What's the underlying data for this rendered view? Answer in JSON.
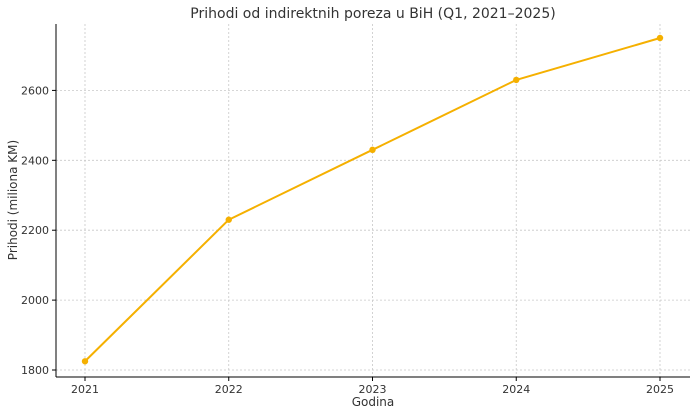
{
  "chart_data": {
    "type": "line",
    "title": "Prihodi od indirektnih poreza u BiH (Q1, 2021–2025)",
    "xlabel": "Godina",
    "ylabel": "Prihodi (miliona KM)",
    "categories": [
      "2021",
      "2022",
      "2023",
      "2024",
      "2025"
    ],
    "series": [
      {
        "values": [
          1825,
          2230,
          2430,
          2630,
          2750
        ]
      }
    ],
    "ylim": [
      1780,
      2790
    ],
    "yticks": [
      1800,
      2000,
      2200,
      2400,
      2600
    ],
    "grid": true,
    "line_color": "#f5b000",
    "marker": "circle"
  }
}
